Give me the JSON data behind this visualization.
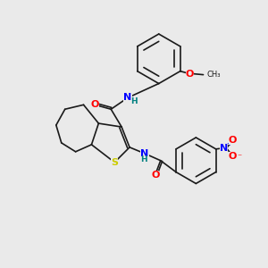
{
  "bg_color": "#eaeaea",
  "bond_color": "#1a1a1a",
  "atom_colors": {
    "N": "#0000ff",
    "O": "#ff0000",
    "S": "#cccc00",
    "C": "#1a1a1a",
    "H": "#008080"
  },
  "font_size_atom": 8,
  "font_size_small": 6.5,
  "figsize": [
    3.0,
    3.0
  ],
  "dpi": 100
}
